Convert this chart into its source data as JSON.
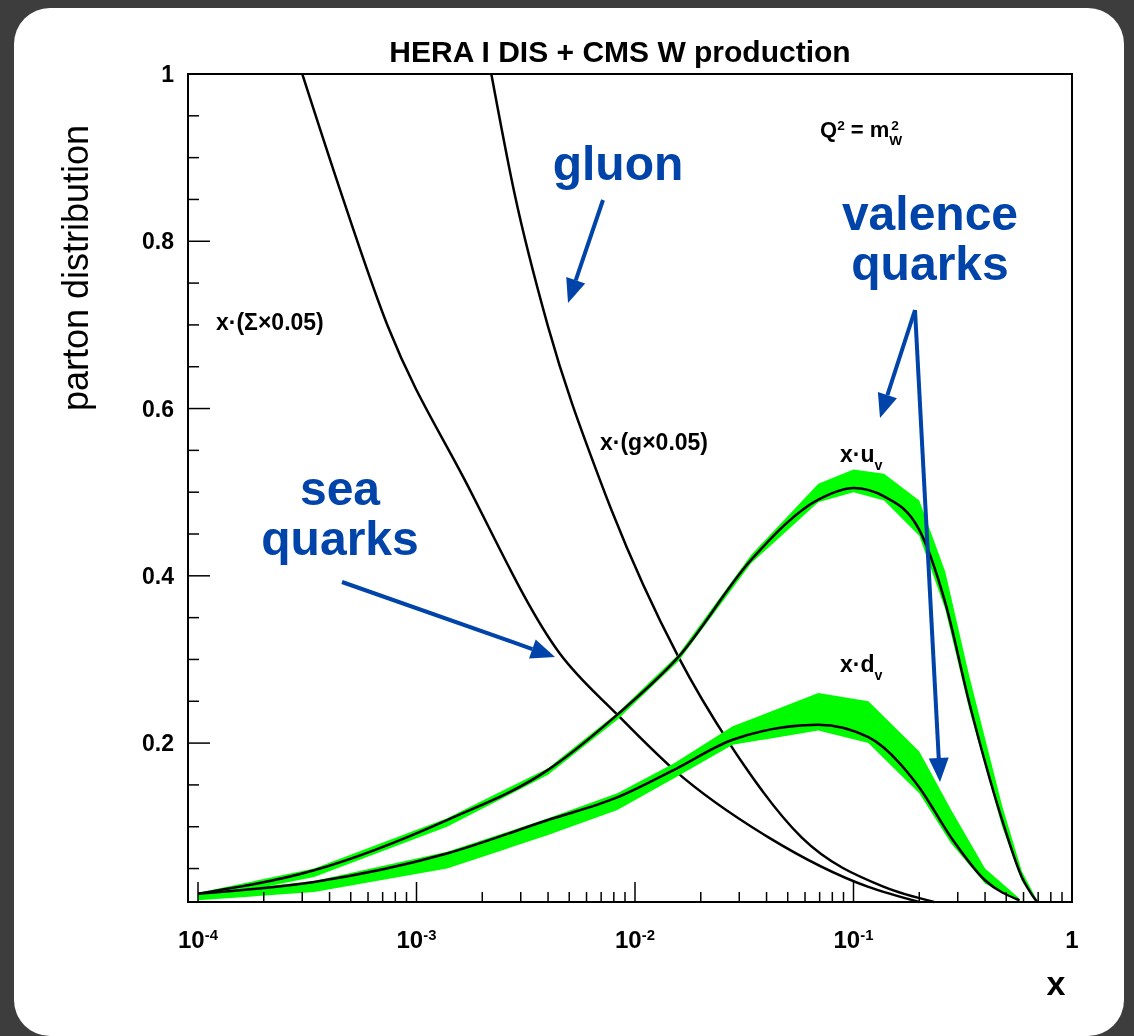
{
  "chart_data": {
    "type": "line",
    "title": "HERA I DIS + CMS W production",
    "xlabel": "x",
    "ylabel": "parton distribution",
    "log": "x",
    "grid": false,
    "marker": "none",
    "line_style": "solid",
    "xlim": [
      9e-05,
      1
    ],
    "ylim": [
      0.01,
      1
    ],
    "xticks": [
      {
        "value": 0.0001,
        "label": "10$^{-4}$"
      },
      {
        "value": 0.0002,
        "label": null
      },
      {
        "value": 0.0003,
        "label": null
      },
      {
        "value": 0.0004,
        "label": null
      },
      {
        "value": 0.0005,
        "label": null
      },
      {
        "value": 0.0006,
        "label": null
      },
      {
        "value": 0.0007,
        "label": null
      },
      {
        "value": 0.0008,
        "label": null
      },
      {
        "value": 0.0009,
        "label": null
      },
      {
        "value": 0.001,
        "label": "10$^{-3}$"
      },
      {
        "value": 0.002,
        "label": null
      },
      {
        "value": 0.003,
        "label": null
      },
      {
        "value": 0.004,
        "label": null
      },
      {
        "value": 0.005,
        "label": null
      },
      {
        "value": 0.006,
        "label": null
      },
      {
        "value": 0.007,
        "label": null
      },
      {
        "value": 0.008,
        "label": null
      },
      {
        "value": 0.009,
        "label": null
      },
      {
        "value": 0.01,
        "label": "10$^{-2}$"
      },
      {
        "value": 0.02,
        "label": null
      },
      {
        "value": 0.03,
        "label": null
      },
      {
        "value": 0.04,
        "label": null
      },
      {
        "value": 0.05,
        "label": null
      },
      {
        "value": 0.06,
        "label": null
      },
      {
        "value": 0.07,
        "label": null
      },
      {
        "value": 0.08,
        "label": null
      },
      {
        "value": 0.09,
        "label": null
      },
      {
        "value": 0.1,
        "label": "10$^{-1}$"
      },
      {
        "value": 0.2,
        "label": null
      },
      {
        "value": 0.3,
        "label": null
      },
      {
        "value": 0.4,
        "label": null
      },
      {
        "value": 0.5,
        "label": null
      },
      {
        "value": 0.6,
        "label": null
      },
      {
        "value": 0.7,
        "label": null
      },
      {
        "value": 0.8,
        "label": null
      },
      {
        "value": 0.9,
        "label": null
      },
      1
    ],
    "yticks": [
      {
        "value": 0.05,
        "label": null
      },
      {
        "value": 0.1,
        "label": null
      },
      {
        "value": 0.15,
        "label": null
      },
      0.2,
      {
        "value": 0.25,
        "label": null
      },
      {
        "value": 0.3,
        "label": null
      },
      {
        "value": 0.35,
        "label": null
      },
      0.4,
      {
        "value": 0.45,
        "label": null
      },
      {
        "value": 0.5,
        "label": null
      },
      {
        "value": 0.55,
        "label": null
      },
      0.6,
      {
        "value": 0.65,
        "label": null
      },
      {
        "value": 0.7,
        "label": null
      },
      {
        "value": 0.75,
        "label": null
      },
      0.8,
      {
        "value": 0.85,
        "label": null
      },
      {
        "value": 0.9,
        "label": null
      },
      {
        "value": 0.95,
        "label": null
      },
      1
    ],
    "series": [
      {
        "name": "x·(Σ×0.05)",
        "color": "#000000",
        "x": [
          0.0003,
          0.00045,
          0.00074,
          0.00166,
          0.0045,
          0.0083,
          0.0151,
          0.041,
          0.117,
          0.2
        ],
        "values": [
          1,
          0.859,
          0.698,
          0.515,
          0.308,
          0.234,
          0.168,
          0.087,
          0.028,
          0.01
        ]
      },
      {
        "name": "x·(g×0.05)",
        "color": "#000000",
        "x": [
          0.0022,
          0.0028,
          0.004,
          0.0069,
          0.0158,
          0.027,
          0.058,
          0.138,
          0.234
        ],
        "values": [
          1,
          0.859,
          0.698,
          0.515,
          0.303,
          0.2,
          0.087,
          0.028,
          0.01
        ]
      },
      {
        "name": "x·u$_{v}$",
        "color": "#000000",
        "x": [
          0.0001,
          0.00034,
          0.00138,
          0.004,
          0.0083,
          0.0158,
          0.034,
          0.069,
          0.1,
          0.138,
          0.2,
          0.263,
          0.339,
          0.479,
          0.589,
          0.692
        ],
        "values": [
          0.02,
          0.048,
          0.108,
          0.168,
          0.234,
          0.303,
          0.419,
          0.491,
          0.505,
          0.495,
          0.455,
          0.368,
          0.248,
          0.108,
          0.04,
          0.01
        ],
        "upper": [
          0.021,
          0.05,
          0.11,
          0.17,
          0.236,
          0.306,
          0.425,
          0.51,
          0.527,
          0.522,
          0.49,
          0.405,
          0.28,
          0.125,
          0.047,
          0.012
        ],
        "lower": [
          0.012,
          0.04,
          0.1,
          0.162,
          0.228,
          0.298,
          0.415,
          0.488,
          0.5,
          0.49,
          0.448,
          0.36,
          0.24,
          0.1,
          0.035,
          0.01
        ]
      },
      {
        "name": "x·d$_{v}$",
        "color": "#000000",
        "x": [
          0.0001,
          0.00034,
          0.00138,
          0.004,
          0.0083,
          0.0151,
          0.028,
          0.069,
          0.117,
          0.2,
          0.28,
          0.4,
          0.575
        ],
        "values": [
          0.02,
          0.034,
          0.068,
          0.108,
          0.135,
          0.168,
          0.204,
          0.222,
          0.207,
          0.147,
          0.087,
          0.036,
          0.012
        ],
        "upper": [
          0.02,
          0.035,
          0.07,
          0.11,
          0.14,
          0.176,
          0.22,
          0.26,
          0.25,
          0.19,
          0.12,
          0.05,
          0.014
        ],
        "lower": [
          0.012,
          0.022,
          0.05,
          0.09,
          0.12,
          0.158,
          0.198,
          0.215,
          0.2,
          0.14,
          0.08,
          0.032,
          0.01
        ]
      }
    ],
    "annotations": [
      "Q$^{2}$ = m$_{W}$$^{2}$",
      "gluon",
      "valence quarks",
      "sea quarks"
    ]
  }
}
